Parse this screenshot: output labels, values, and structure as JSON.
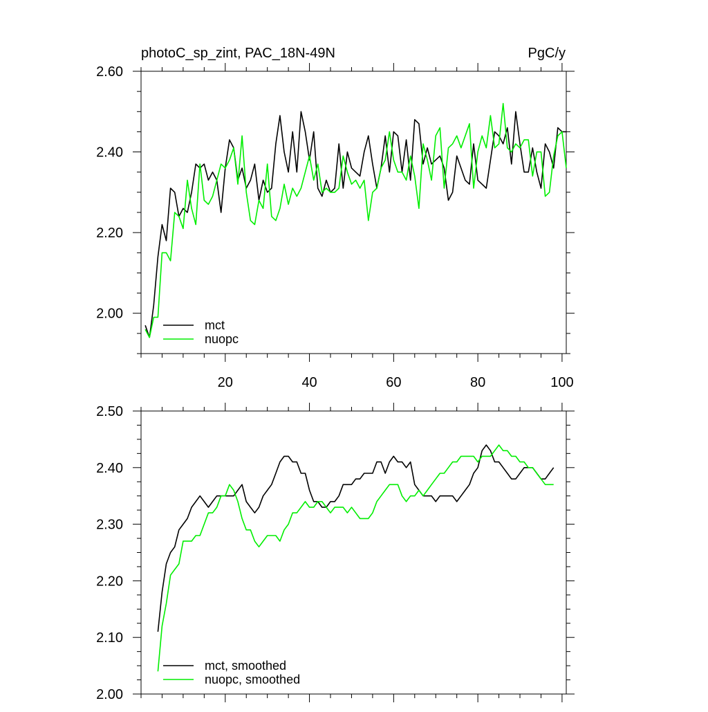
{
  "colors": {
    "mct": "#000000",
    "nuopc": "#00ee00",
    "axis": "#000000",
    "background": "#ffffff"
  },
  "header": {
    "left_title": "photoC_sp_zint, PAC_18N-49N",
    "right_title": "PgC/y"
  },
  "chart_data": [
    {
      "type": "line",
      "title": "photoC_sp_zint, PAC_18N-49N",
      "units": "PgC/y",
      "xlim": [
        0,
        101
      ],
      "ylim": [
        1.9,
        2.6
      ],
      "xticks": [
        20,
        40,
        60,
        80,
        100
      ],
      "xtick_labels": [
        "20",
        "40",
        "60",
        "80",
        "100"
      ],
      "yticks": [
        2.0,
        2.2,
        2.4,
        2.6
      ],
      "ytick_labels": [
        "2.00",
        "2.20",
        "2.40",
        "2.60"
      ],
      "legend": [
        "mct",
        "nuopc"
      ],
      "legend_position": "bottom-left",
      "series": [
        {
          "name": "mct",
          "x": [
            1,
            2,
            3,
            4,
            5,
            6,
            7,
            8,
            9,
            10,
            11,
            12,
            13,
            14,
            15,
            16,
            17,
            18,
            19,
            20,
            21,
            22,
            23,
            24,
            25,
            26,
            27,
            28,
            29,
            30,
            31,
            32,
            33,
            34,
            35,
            36,
            37,
            38,
            39,
            40,
            41,
            42,
            43,
            44,
            45,
            46,
            47,
            48,
            49,
            50,
            51,
            52,
            53,
            54,
            55,
            56,
            57,
            58,
            59,
            60,
            61,
            62,
            63,
            64,
            65,
            66,
            67,
            68,
            69,
            70,
            71,
            72,
            73,
            74,
            75,
            76,
            77,
            78,
            79,
            80,
            81,
            82,
            83,
            84,
            85,
            86,
            87,
            88,
            89,
            90,
            91,
            92,
            93,
            94,
            95,
            96,
            97,
            98,
            99,
            100,
            101
          ],
          "values": [
            1.97,
            1.94,
            2.02,
            2.14,
            2.22,
            2.18,
            2.31,
            2.3,
            2.24,
            2.26,
            2.25,
            2.3,
            2.37,
            2.36,
            2.37,
            2.33,
            2.35,
            2.33,
            2.25,
            2.36,
            2.43,
            2.41,
            2.33,
            2.36,
            2.31,
            2.33,
            2.37,
            2.28,
            2.33,
            2.3,
            2.31,
            2.42,
            2.49,
            2.4,
            2.35,
            2.45,
            2.35,
            2.5,
            2.45,
            2.38,
            2.45,
            2.31,
            2.29,
            2.33,
            2.3,
            2.31,
            2.42,
            2.31,
            2.4,
            2.36,
            2.35,
            2.34,
            2.4,
            2.44,
            2.37,
            2.31,
            2.36,
            2.44,
            2.35,
            2.45,
            2.44,
            2.35,
            2.43,
            2.33,
            2.48,
            2.47,
            2.37,
            2.41,
            2.37,
            2.38,
            2.39,
            2.36,
            2.28,
            2.3,
            2.39,
            2.36,
            2.33,
            2.32,
            2.42,
            2.33,
            2.32,
            2.31,
            2.38,
            2.45,
            2.44,
            2.42,
            2.46,
            2.37,
            2.5,
            2.42,
            2.35,
            2.35,
            2.41,
            2.35,
            2.31,
            2.42,
            2.4,
            2.36,
            2.46,
            2.45,
            2.45
          ]
        },
        {
          "name": "nuopc",
          "x": [
            1,
            2,
            3,
            4,
            5,
            6,
            7,
            8,
            9,
            10,
            11,
            12,
            13,
            14,
            15,
            16,
            17,
            18,
            19,
            20,
            21,
            22,
            23,
            24,
            25,
            26,
            27,
            28,
            29,
            30,
            31,
            32,
            33,
            34,
            35,
            36,
            37,
            38,
            39,
            40,
            41,
            42,
            43,
            44,
            45,
            46,
            47,
            48,
            49,
            50,
            51,
            52,
            53,
            54,
            55,
            56,
            57,
            58,
            59,
            60,
            61,
            62,
            63,
            64,
            65,
            66,
            67,
            68,
            69,
            70,
            71,
            72,
            73,
            74,
            75,
            76,
            77,
            78,
            79,
            80,
            81,
            82,
            83,
            84,
            85,
            86,
            87,
            88,
            89,
            90,
            91,
            92,
            93,
            94,
            95,
            96,
            97,
            98,
            99,
            100,
            101
          ],
          "values": [
            1.96,
            1.94,
            1.99,
            1.99,
            2.15,
            2.15,
            2.13,
            2.25,
            2.24,
            2.21,
            2.33,
            2.26,
            2.22,
            2.37,
            2.28,
            2.27,
            2.29,
            2.33,
            2.37,
            2.36,
            2.38,
            2.41,
            2.32,
            2.44,
            2.3,
            2.23,
            2.22,
            2.28,
            2.26,
            2.37,
            2.24,
            2.23,
            2.26,
            2.32,
            2.27,
            2.31,
            2.29,
            2.31,
            2.35,
            2.39,
            2.33,
            2.37,
            2.3,
            2.31,
            2.3,
            2.3,
            2.31,
            2.39,
            2.35,
            2.32,
            2.33,
            2.31,
            2.33,
            2.23,
            2.3,
            2.31,
            2.36,
            2.38,
            2.45,
            2.38,
            2.35,
            2.35,
            2.33,
            2.39,
            2.34,
            2.26,
            2.42,
            2.38,
            2.33,
            2.44,
            2.46,
            2.31,
            2.41,
            2.42,
            2.44,
            2.41,
            2.44,
            2.47,
            2.31,
            2.4,
            2.44,
            2.41,
            2.49,
            2.41,
            2.42,
            2.52,
            2.41,
            2.4,
            2.42,
            2.41,
            2.43,
            2.43,
            2.34,
            2.4,
            2.4,
            2.29,
            2.3,
            2.39,
            2.44,
            2.45,
            2.36
          ]
        }
      ]
    },
    {
      "type": "line",
      "title": "",
      "xlim": [
        0,
        101
      ],
      "ylim": [
        2.0,
        2.5
      ],
      "xticks": [
        20,
        40,
        60,
        80,
        100
      ],
      "xtick_labels": [],
      "yticks": [
        2.0,
        2.1,
        2.2,
        2.3,
        2.4,
        2.5
      ],
      "ytick_labels": [
        "2.00",
        "2.10",
        "2.20",
        "2.30",
        "2.40",
        "2.50"
      ],
      "legend": [
        "mct, smoothed",
        "nuopc, smoothed"
      ],
      "legend_position": "bottom-left",
      "series": [
        {
          "name": "mct, smoothed",
          "x": [
            4,
            5,
            6,
            7,
            8,
            9,
            10,
            11,
            12,
            13,
            14,
            15,
            16,
            17,
            18,
            19,
            20,
            21,
            22,
            23,
            24,
            25,
            26,
            27,
            28,
            29,
            30,
            31,
            32,
            33,
            34,
            35,
            36,
            37,
            38,
            39,
            40,
            41,
            42,
            43,
            44,
            45,
            46,
            47,
            48,
            49,
            50,
            51,
            52,
            53,
            54,
            55,
            56,
            57,
            58,
            59,
            60,
            61,
            62,
            63,
            64,
            65,
            66,
            67,
            68,
            69,
            70,
            71,
            72,
            73,
            74,
            75,
            76,
            77,
            78,
            79,
            80,
            81,
            82,
            83,
            84,
            85,
            86,
            87,
            88,
            89,
            90,
            91,
            92,
            93,
            94,
            95,
            96,
            97,
            98
          ],
          "values": [
            2.11,
            2.18,
            2.23,
            2.25,
            2.26,
            2.29,
            2.3,
            2.31,
            2.33,
            2.34,
            2.35,
            2.34,
            2.33,
            2.34,
            2.35,
            2.35,
            2.35,
            2.35,
            2.35,
            2.36,
            2.37,
            2.34,
            2.33,
            2.32,
            2.33,
            2.35,
            2.36,
            2.37,
            2.39,
            2.41,
            2.42,
            2.42,
            2.41,
            2.41,
            2.39,
            2.39,
            2.36,
            2.34,
            2.34,
            2.33,
            2.33,
            2.34,
            2.34,
            2.35,
            2.37,
            2.37,
            2.37,
            2.38,
            2.38,
            2.39,
            2.39,
            2.39,
            2.41,
            2.41,
            2.39,
            2.41,
            2.42,
            2.41,
            2.41,
            2.4,
            2.41,
            2.37,
            2.36,
            2.35,
            2.35,
            2.35,
            2.34,
            2.35,
            2.35,
            2.35,
            2.35,
            2.34,
            2.35,
            2.36,
            2.37,
            2.39,
            2.4,
            2.43,
            2.44,
            2.43,
            2.41,
            2.41,
            2.4,
            2.39,
            2.38,
            2.38,
            2.39,
            2.4,
            2.4,
            2.4,
            2.39,
            2.38,
            2.38,
            2.39,
            2.4
          ]
        },
        {
          "name": "nuopc, smoothed",
          "x": [
            4,
            5,
            6,
            7,
            8,
            9,
            10,
            11,
            12,
            13,
            14,
            15,
            16,
            17,
            18,
            19,
            20,
            21,
            22,
            23,
            24,
            25,
            26,
            27,
            28,
            29,
            30,
            31,
            32,
            33,
            34,
            35,
            36,
            37,
            38,
            39,
            40,
            41,
            42,
            43,
            44,
            45,
            46,
            47,
            48,
            49,
            50,
            51,
            52,
            53,
            54,
            55,
            56,
            57,
            58,
            59,
            60,
            61,
            62,
            63,
            64,
            65,
            66,
            67,
            68,
            69,
            70,
            71,
            72,
            73,
            74,
            75,
            76,
            77,
            78,
            79,
            80,
            81,
            82,
            83,
            84,
            85,
            86,
            87,
            88,
            89,
            90,
            91,
            92,
            93,
            94,
            95,
            96,
            97,
            98
          ],
          "values": [
            2.04,
            2.12,
            2.16,
            2.21,
            2.22,
            2.23,
            2.27,
            2.27,
            2.27,
            2.28,
            2.28,
            2.3,
            2.32,
            2.32,
            2.33,
            2.35,
            2.35,
            2.37,
            2.36,
            2.34,
            2.31,
            2.29,
            2.29,
            2.27,
            2.26,
            2.27,
            2.28,
            2.28,
            2.28,
            2.27,
            2.29,
            2.3,
            2.32,
            2.32,
            2.33,
            2.34,
            2.33,
            2.33,
            2.34,
            2.34,
            2.33,
            2.32,
            2.33,
            2.33,
            2.33,
            2.32,
            2.33,
            2.32,
            2.31,
            2.31,
            2.31,
            2.32,
            2.34,
            2.35,
            2.36,
            2.37,
            2.37,
            2.37,
            2.35,
            2.34,
            2.35,
            2.35,
            2.36,
            2.35,
            2.36,
            2.37,
            2.38,
            2.39,
            2.39,
            2.4,
            2.41,
            2.41,
            2.42,
            2.42,
            2.42,
            2.42,
            2.41,
            2.42,
            2.42,
            2.42,
            2.43,
            2.44,
            2.43,
            2.43,
            2.42,
            2.42,
            2.41,
            2.41,
            2.4,
            2.4,
            2.39,
            2.38,
            2.37,
            2.37,
            2.37
          ]
        }
      ]
    }
  ]
}
